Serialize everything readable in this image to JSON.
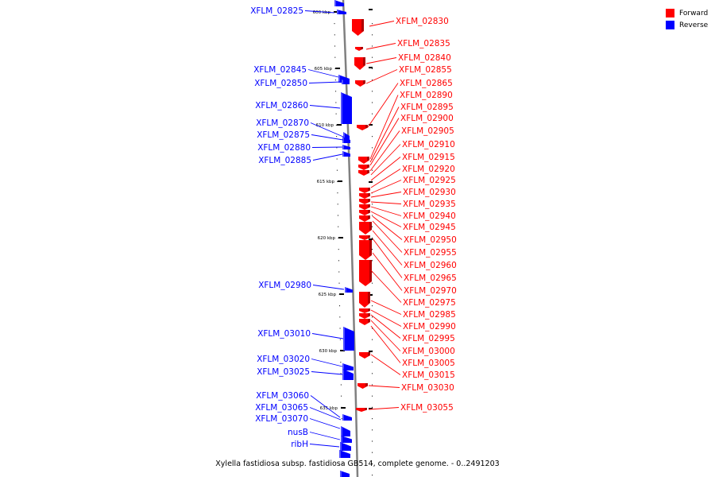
{
  "title": "Xylella fastidiosa subsp. fastidiosa GB514, complete genome. - 0..2491203",
  "legend": [
    {
      "label": "Forward",
      "color": "#ff0000"
    },
    {
      "label": "Reverse",
      "color": "#0000ff"
    }
  ],
  "colors": {
    "forward": "#ff0000",
    "reverse": "#0000ff",
    "backbone": "#808080"
  },
  "ticks": [
    "600 kbp",
    "605 kbp",
    "610 kbp",
    "615 kbp",
    "620 kbp",
    "625 kbp",
    "630 kbp",
    "635 kbp"
  ],
  "reverse_genes": [
    "XFLM_02825",
    "XFLM_02845",
    "XFLM_02850",
    "XFLM_02860",
    "XFLM_02870",
    "XFLM_02875",
    "XFLM_02880",
    "XFLM_02885",
    "XFLM_02980",
    "XFLM_03010",
    "XFLM_03020",
    "XFLM_03025",
    "XFLM_03060",
    "XFLM_03065",
    "XFLM_03070",
    "nusB",
    "ribH"
  ],
  "forward_genes": [
    "XFLM_02830",
    "XFLM_02835",
    "XFLM_02840",
    "XFLM_02855",
    "XFLM_02865",
    "XFLM_02890",
    "XFLM_02895",
    "XFLM_02900",
    "XFLM_02905",
    "XFLM_02910",
    "XFLM_02915",
    "XFLM_02920",
    "XFLM_02925",
    "XFLM_02930",
    "XFLM_02935",
    "XFLM_02940",
    "XFLM_02945",
    "XFLM_02950",
    "XFLM_02955",
    "XFLM_02960",
    "XFLM_02965",
    "XFLM_02970",
    "XFLM_02975",
    "XFLM_02985",
    "XFLM_02990",
    "XFLM_02995",
    "XFLM_03000",
    "XFLM_03005",
    "XFLM_03015",
    "XFLM_03030",
    "XFLM_03055"
  ]
}
